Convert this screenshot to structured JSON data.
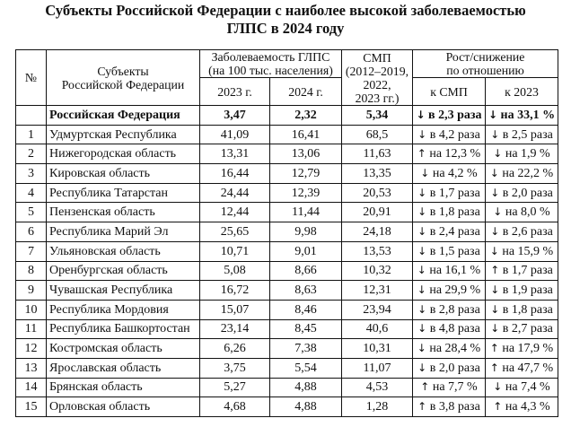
{
  "title": {
    "line1": "Субъекты Российской Федерации с наиболее высокой заболеваемостью",
    "line2": "ГЛПС в 2024 году"
  },
  "header": {
    "num": "№",
    "subject_line1": "Субъекты",
    "subject_line2": "Российской Федерации",
    "incidence_line1": "Заболеваемость ГЛПС",
    "incidence_line2": "(на 100 тыс. населения)",
    "y2023": "2023 г.",
    "y2024": "2024 г.",
    "smp_line1": "СМП",
    "smp_line2": "(2012–2019,",
    "smp_line3": "2022,",
    "smp_line4": "2023 гг.)",
    "change_line1": "Рост/снижение",
    "change_line2": "по отношению",
    "vs_smp": "к СМП",
    "vs_2023": "к 2023"
  },
  "total": {
    "num": "",
    "name": "Российская Федерация",
    "y2023": "3,47",
    "y2024": "2,32",
    "smp": "5,34",
    "vs_smp_arrow": "↓",
    "vs_smp": "в 2,3 раза",
    "vs_2023_arrow": "↓",
    "vs_2023": "на 33,1 %"
  },
  "rows": [
    {
      "num": "1",
      "name": "Удмуртская Республика",
      "y2023": "41,09",
      "y2024": "16,41",
      "smp": "68,5",
      "vs_smp_arrow": "↓",
      "vs_smp": "в 4,2 раза",
      "vs_2023_arrow": "↓",
      "vs_2023": "в 2,5 раза"
    },
    {
      "num": "2",
      "name": "Нижегородская область",
      "y2023": "13,31",
      "y2024": "13,06",
      "smp": "11,63",
      "vs_smp_arrow": "↑",
      "vs_smp": "на 12,3 %",
      "vs_2023_arrow": "↓",
      "vs_2023": "на 1,9 %"
    },
    {
      "num": "3",
      "name": "Кировская область",
      "y2023": "16,44",
      "y2024": "12,79",
      "smp": "13,35",
      "vs_smp_arrow": "↓",
      "vs_smp": "на 4,2 %",
      "vs_2023_arrow": "↓",
      "vs_2023": "на 22,2 %"
    },
    {
      "num": "4",
      "name": "Республика Татарстан",
      "y2023": "24,44",
      "y2024": "12,39",
      "smp": "20,53",
      "vs_smp_arrow": "↓",
      "vs_smp": "в 1,7 раза",
      "vs_2023_arrow": "↓",
      "vs_2023": "в 2,0 раза"
    },
    {
      "num": "5",
      "name": "Пензенская область",
      "y2023": "12,44",
      "y2024": "11,44",
      "smp": "20,91",
      "vs_smp_arrow": "↓",
      "vs_smp": "в 1,8 раза",
      "vs_2023_arrow": "↓",
      "vs_2023": "на 8,0 %"
    },
    {
      "num": "6",
      "name": "Республика Марий Эл",
      "y2023": "25,65",
      "y2024": "9,98",
      "smp": "24,18",
      "vs_smp_arrow": "↓",
      "vs_smp": "в 2,4 раза",
      "vs_2023_arrow": "↓",
      "vs_2023": "в 2,6 раза"
    },
    {
      "num": "7",
      "name": "Ульяновская область",
      "y2023": "10,71",
      "y2024": "9,01",
      "smp": "13,53",
      "vs_smp_arrow": "↓",
      "vs_smp": "в 1,5 раза",
      "vs_2023_arrow": "↓",
      "vs_2023": "на 15,9 %"
    },
    {
      "num": "8",
      "name": "Оренбургская область",
      "y2023": "5,08",
      "y2024": "8,66",
      "smp": "10,32",
      "vs_smp_arrow": "↓",
      "vs_smp": "на 16,1 %",
      "vs_2023_arrow": "↑",
      "vs_2023": "в 1,7 раза"
    },
    {
      "num": "9",
      "name": "Чувашская Республика",
      "y2023": "16,72",
      "y2024": "8,63",
      "smp": "12,31",
      "vs_smp_arrow": "↓",
      "vs_smp": "на 29,9 %",
      "vs_2023_arrow": "↓",
      "vs_2023": "в 1,9 раза"
    },
    {
      "num": "10",
      "name": "Республика Мордовия",
      "y2023": "15,07",
      "y2024": "8,46",
      "smp": "23,94",
      "vs_smp_arrow": "↓",
      "vs_smp": "в 2,8 раза",
      "vs_2023_arrow": "↓",
      "vs_2023": "в 1,8 раза"
    },
    {
      "num": "11",
      "name": "Республика Башкортостан",
      "y2023": "23,14",
      "y2024": "8,45",
      "smp": "40,6",
      "vs_smp_arrow": "↓",
      "vs_smp": "в 4,8 раза",
      "vs_2023_arrow": "↓",
      "vs_2023": "в 2,7 раза"
    },
    {
      "num": "12",
      "name": "Костромская область",
      "y2023": "6,26",
      "y2024": "7,38",
      "smp": "10,31",
      "vs_smp_arrow": "↓",
      "vs_smp": "на 28,4 %",
      "vs_2023_arrow": "↑",
      "vs_2023": "на 17,9 %"
    },
    {
      "num": "13",
      "name": "Ярославская область",
      "y2023": "3,75",
      "y2024": "5,54",
      "smp": "11,07",
      "vs_smp_arrow": "↓",
      "vs_smp": "в 2,0 раза",
      "vs_2023_arrow": "↑",
      "vs_2023": "на 47,7 %"
    },
    {
      "num": "14",
      "name": "Брянская область",
      "y2023": "5,27",
      "y2024": "4,88",
      "smp": "4,53",
      "vs_smp_arrow": "↑",
      "vs_smp": "на 7,7 %",
      "vs_2023_arrow": "↓",
      "vs_2023": "на 7,4 %"
    },
    {
      "num": "15",
      "name": "Орловская область",
      "y2023": "4,68",
      "y2024": "4,88",
      "smp": "1,28",
      "vs_smp_arrow": "↑",
      "vs_smp": "в 3,8 раза",
      "vs_2023_arrow": "↑",
      "vs_2023": "на 4,3 %"
    }
  ]
}
